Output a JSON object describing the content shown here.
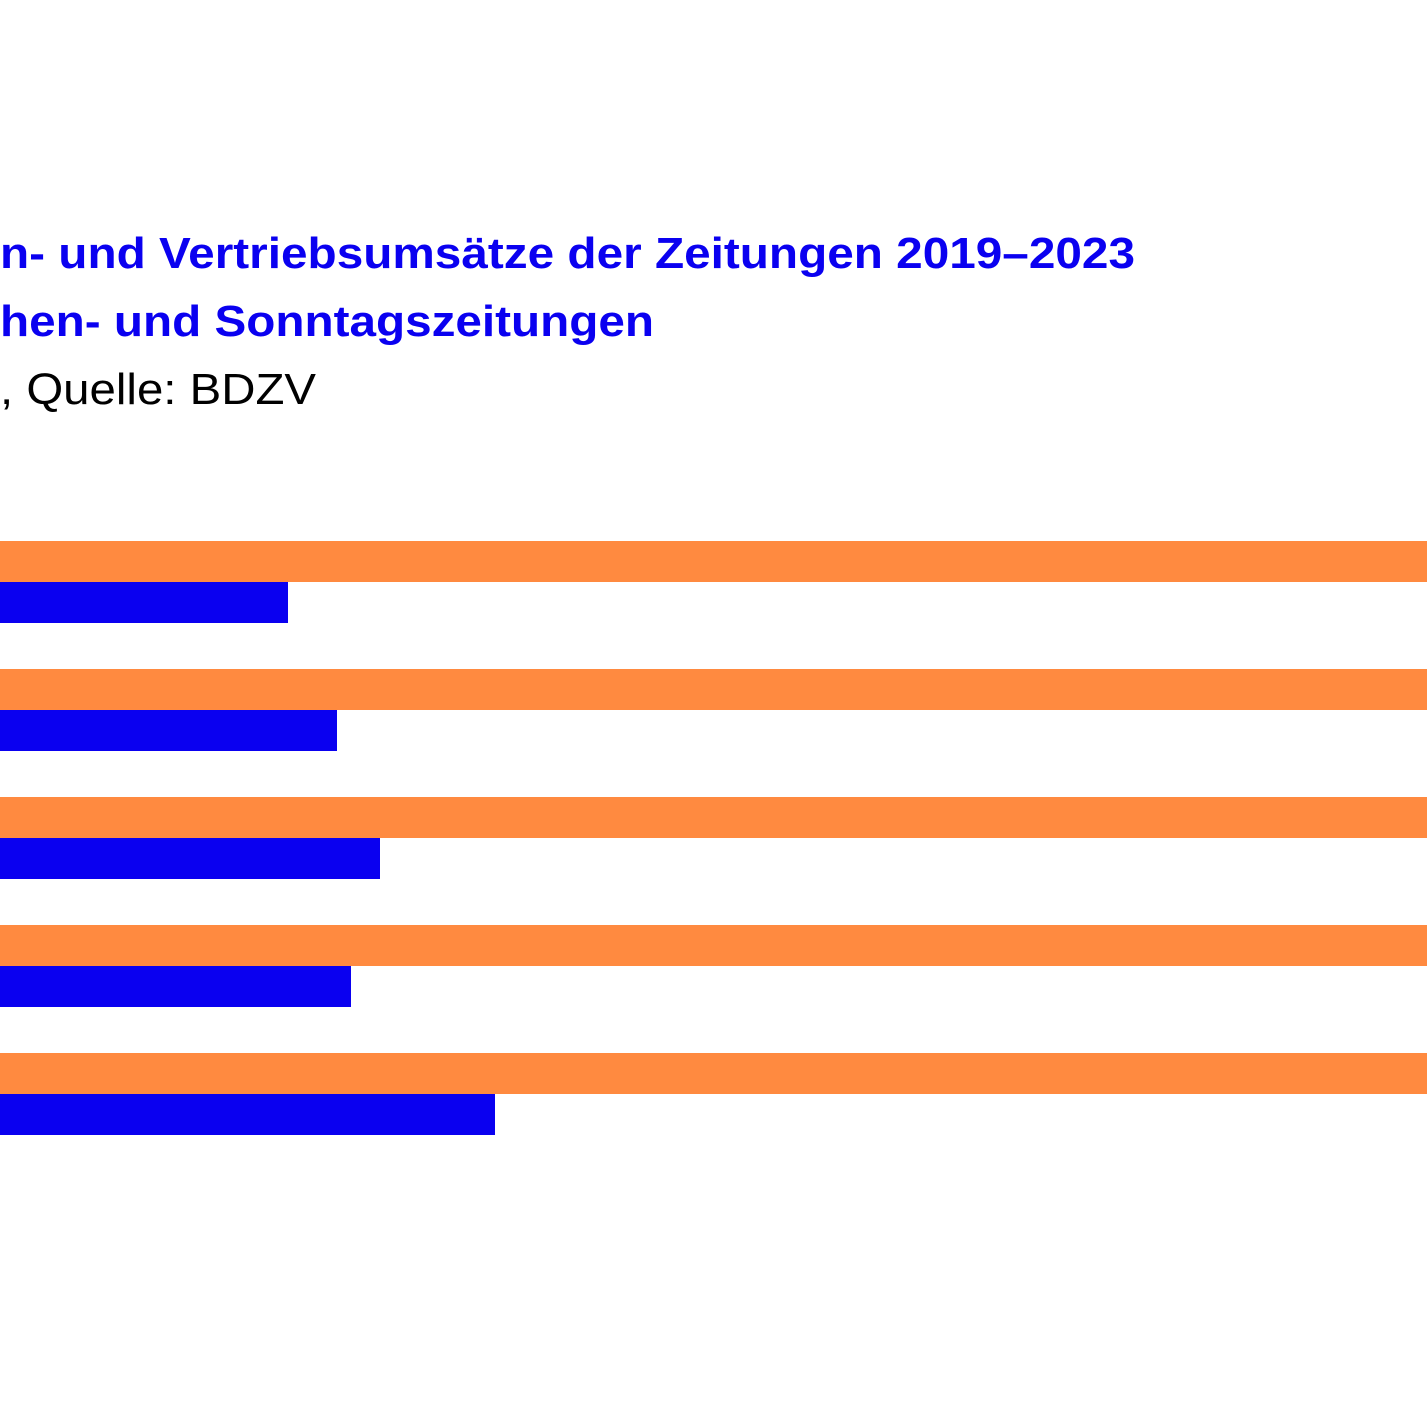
{
  "chart_data": {
    "type": "bar",
    "orientation": "horizontal",
    "title": "n- und Vertriebsumsätze der Zeitungen 2019–2023",
    "subtitle": "hen- und Sonntagszeitungen",
    "source": ", Quelle: BDZV",
    "title_color": "#0a00f0",
    "xlim": [
      0,
      1427
    ],
    "series": [
      {
        "color": "#ff8a40",
        "values": [
          1427,
          1427,
          1427,
          1427,
          1427
        ]
      },
      {
        "color": "#0a00f0",
        "values": [
          288,
          337,
          380,
          351,
          495
        ]
      }
    ]
  }
}
